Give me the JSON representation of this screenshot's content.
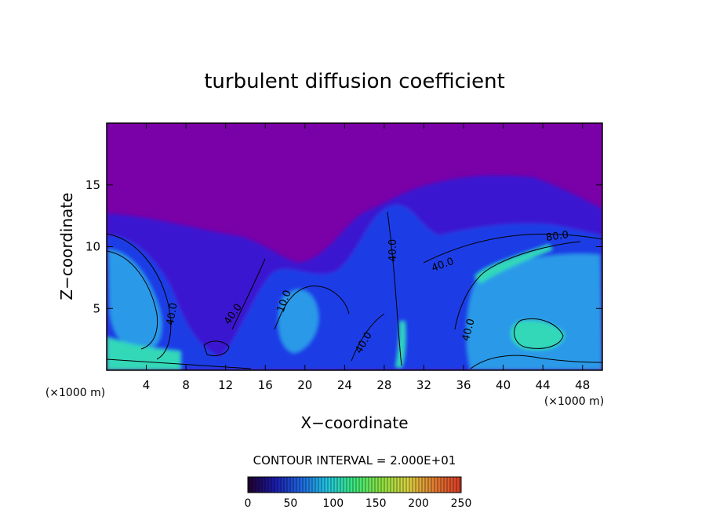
{
  "chart_data": {
    "type": "heatmap",
    "title": "turbulent diffusion coefficient",
    "xlabel": "X−coordinate",
    "ylabel": "Z−coordinate",
    "x_unit": "(×1000 m)",
    "x_unit_right": "(×1000 m)",
    "xlim": [
      0,
      50
    ],
    "ylim": [
      0,
      20
    ],
    "xticks": [
      4,
      8,
      12,
      16,
      20,
      24,
      28,
      32,
      36,
      40,
      44,
      48
    ],
    "yticks": [
      5,
      10,
      15
    ],
    "contour_interval_label": "CONTOUR INTERVAL = 2.000E+01",
    "contour_labels": [
      {
        "text": "40.0",
        "x": 6.9,
        "z": 4.5,
        "angle": -80
      },
      {
        "text": "40.0",
        "x": 13.0,
        "z": 4.4,
        "angle": -55
      },
      {
        "text": "10.0",
        "x": 18.2,
        "z": 5.5,
        "angle": -70
      },
      {
        "text": "40.0",
        "x": 26.2,
        "z": 2.1,
        "angle": -60
      },
      {
        "text": "40.0",
        "x": 29.2,
        "z": 9.7,
        "angle": -90
      },
      {
        "text": "40.0",
        "x": 34.0,
        "z": 8.3,
        "angle": -20
      },
      {
        "text": "40.0",
        "x": 36.8,
        "z": 3.2,
        "angle": -75
      },
      {
        "text": "80.0",
        "x": 45.5,
        "z": 10.6,
        "angle": -8
      }
    ],
    "colorbar": {
      "min": 0,
      "max": 250,
      "ticks": [
        0,
        50,
        100,
        150,
        200,
        250
      ],
      "colors": [
        "#20002a",
        "#1a1aa8",
        "#1e66e0",
        "#22c6e0",
        "#3ae87a",
        "#8ce040",
        "#d8d040",
        "#e07a30",
        "#d83a28"
      ]
    },
    "field_colors": {
      "background": "#7a00a8",
      "low": "#3a14d0",
      "mid": "#1e3ce6",
      "high": "#2a9ae8",
      "peak": "#30d8b8"
    }
  }
}
